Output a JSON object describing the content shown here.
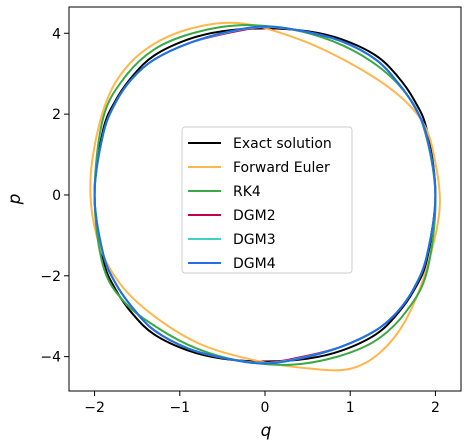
{
  "chart_data": {
    "type": "line",
    "xlabel": "q",
    "ylabel": "p",
    "xlim": [
      -2.3,
      2.3
    ],
    "ylim": [
      -4.85,
      4.65
    ],
    "xticks": [
      -2,
      -1,
      0,
      1,
      2
    ],
    "yticks": [
      -4,
      -2,
      0,
      2,
      4
    ],
    "xtick_labels": [
      "−2",
      "−1",
      "0",
      "1",
      "2"
    ],
    "ytick_labels": [
      "−4",
      "−2",
      "0",
      "2",
      "4"
    ],
    "grid": false,
    "legend_position": "center",
    "series": [
      {
        "name": "Exact solution",
        "color": "#000000",
        "x": [
          2.0,
          1.9,
          1.75,
          1.55,
          1.3,
          0.9,
          0.5,
          0.0,
          -0.5,
          -0.9,
          -1.3,
          -1.55,
          -1.75,
          -1.9,
          -2.0,
          -1.9,
          -1.75,
          -1.55,
          -1.3,
          -0.9,
          -0.5,
          0.0,
          0.5,
          0.9,
          1.3,
          1.55,
          1.75,
          1.9,
          2.0
        ],
        "y": [
          0.0,
          1.6,
          2.35,
          2.95,
          3.45,
          3.85,
          4.05,
          4.12,
          4.05,
          3.85,
          3.45,
          2.95,
          2.35,
          1.6,
          0.0,
          -1.6,
          -2.35,
          -2.95,
          -3.45,
          -3.85,
          -4.05,
          -4.12,
          -4.05,
          -3.85,
          -3.45,
          -2.95,
          -2.35,
          -1.6,
          0.0
        ]
      },
      {
        "name": "Forward Euler",
        "color": "#ffb74d",
        "x": [
          1.98,
          1.85,
          1.55,
          1.05,
          0.4,
          -0.3,
          -0.9,
          -1.4,
          -1.75,
          -1.95,
          -2.05,
          -1.95,
          -1.7,
          -1.3,
          -0.75,
          -0.1,
          0.55,
          1.0,
          1.35,
          1.65,
          1.9,
          2.05,
          1.98
        ],
        "y": [
          1.0,
          1.8,
          2.5,
          3.2,
          3.85,
          4.25,
          4.1,
          3.6,
          2.8,
          1.7,
          0.2,
          -1.2,
          -2.2,
          -3.0,
          -3.7,
          -4.1,
          -4.3,
          -4.3,
          -3.9,
          -3.1,
          -1.8,
          -0.3,
          1.0
        ]
      },
      {
        "name": "RK4",
        "color": "#3aa844",
        "x": [
          2.0,
          1.85,
          1.6,
          1.25,
          0.8,
          0.3,
          -0.3,
          -0.85,
          -1.3,
          -1.65,
          -1.9,
          -2.0,
          -1.9,
          -1.65,
          -1.25,
          -0.8,
          -0.3,
          0.3,
          0.85,
          1.3,
          1.65,
          1.9,
          2.0
        ],
        "y": [
          0.0,
          1.75,
          2.65,
          3.3,
          3.8,
          4.1,
          4.2,
          4.0,
          3.6,
          2.9,
          1.9,
          0.0,
          -1.75,
          -2.65,
          -3.3,
          -3.8,
          -4.1,
          -4.2,
          -4.0,
          -3.6,
          -2.9,
          -1.9,
          0.0
        ]
      },
      {
        "name": "DGM2",
        "color": "#c0004e",
        "x": [
          2.0,
          1.9,
          1.75,
          1.55,
          1.3,
          0.9,
          0.45,
          0.0,
          -0.45,
          -0.9,
          -1.3,
          -1.55,
          -1.75,
          -1.9,
          -2.0,
          -1.9,
          -1.75,
          -1.55,
          -1.3,
          -0.9,
          -0.45,
          0.0,
          0.45,
          0.9,
          1.3,
          1.55,
          1.75,
          1.9,
          2.0
        ],
        "y": [
          0.0,
          1.45,
          2.2,
          2.8,
          3.35,
          3.8,
          4.05,
          4.15,
          4.0,
          3.75,
          3.35,
          2.9,
          2.3,
          1.5,
          0.0,
          -1.45,
          -2.2,
          -2.8,
          -3.35,
          -3.8,
          -4.05,
          -4.15,
          -4.0,
          -3.75,
          -3.35,
          -2.9,
          -2.3,
          -1.5,
          0.0
        ]
      },
      {
        "name": "DGM3",
        "color": "#3fd3c8",
        "x": [
          2.0,
          1.9,
          1.75,
          1.55,
          1.3,
          0.9,
          0.45,
          0.0,
          -0.45,
          -0.9,
          -1.3,
          -1.55,
          -1.75,
          -1.9,
          -2.0,
          -1.9,
          -1.75,
          -1.55,
          -1.3,
          -0.9,
          -0.45,
          0.0,
          0.45,
          0.9,
          1.3,
          1.55,
          1.75,
          1.9,
          2.0
        ],
        "y": [
          0.0,
          1.45,
          2.2,
          2.8,
          3.35,
          3.8,
          4.05,
          4.16,
          4.02,
          3.75,
          3.35,
          2.9,
          2.3,
          1.5,
          0.0,
          -1.45,
          -2.2,
          -2.8,
          -3.35,
          -3.8,
          -4.05,
          -4.16,
          -4.02,
          -3.75,
          -3.35,
          -2.9,
          -2.3,
          -1.5,
          0.0
        ]
      },
      {
        "name": "DGM4",
        "color": "#1f6fe5",
        "x": [
          2.0,
          1.9,
          1.75,
          1.55,
          1.3,
          0.9,
          0.45,
          0.0,
          -0.45,
          -0.9,
          -1.3,
          -1.55,
          -1.75,
          -1.9,
          -2.0,
          -1.9,
          -1.75,
          -1.55,
          -1.3,
          -0.9,
          -0.45,
          0.0,
          0.45,
          0.9,
          1.3,
          1.55,
          1.75,
          1.9,
          2.0
        ],
        "y": [
          0.0,
          1.45,
          2.2,
          2.8,
          3.35,
          3.8,
          4.05,
          4.17,
          4.03,
          3.75,
          3.35,
          2.9,
          2.3,
          1.5,
          0.0,
          -1.45,
          -2.2,
          -2.8,
          -3.35,
          -3.8,
          -4.05,
          -4.17,
          -4.03,
          -3.75,
          -3.35,
          -2.9,
          -2.3,
          -1.5,
          0.0
        ]
      }
    ]
  }
}
